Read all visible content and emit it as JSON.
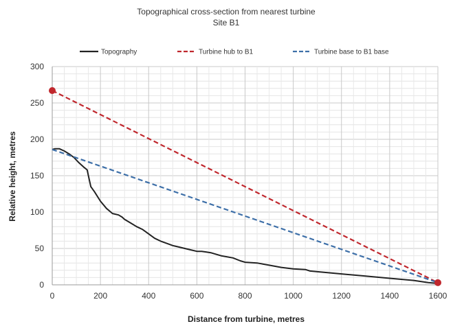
{
  "chart_data": {
    "type": "line",
    "title": "Topographical cross-section from nearest turbine",
    "subtitle": "Site B1",
    "xlabel": "Distance from turbine, metres",
    "ylabel": "Relative height, metres",
    "xlim": [
      0,
      1600
    ],
    "ylim": [
      0,
      300
    ],
    "x_ticks": [
      0,
      200,
      400,
      600,
      800,
      1000,
      1200,
      1400,
      1600
    ],
    "y_ticks": [
      0,
      50,
      100,
      150,
      200,
      250,
      300
    ],
    "grid": true,
    "legend_position": "top",
    "series": [
      {
        "name": "Topography",
        "style": "solid",
        "color": "#222222",
        "x": [
          0,
          10,
          30,
          50,
          70,
          90,
          110,
          130,
          145,
          150,
          160,
          175,
          200,
          225,
          250,
          275,
          290,
          300,
          325,
          350,
          375,
          400,
          425,
          450,
          475,
          500,
          525,
          550,
          575,
          600,
          620,
          640,
          660,
          700,
          750,
          780,
          800,
          850,
          900,
          950,
          1000,
          1050,
          1070,
          1100,
          1200,
          1300,
          1400,
          1500,
          1560,
          1600
        ],
        "y": [
          186,
          187,
          187,
          184,
          180,
          175,
          168,
          162,
          158,
          150,
          135,
          128,
          115,
          105,
          98,
          96,
          93,
          90,
          85,
          80,
          76,
          70,
          64,
          60,
          57,
          54,
          52,
          50,
          48,
          46,
          46,
          45,
          44,
          40,
          37,
          33,
          31,
          30,
          27,
          24,
          22,
          21,
          19,
          18,
          15,
          12,
          9,
          6,
          3,
          2
        ]
      },
      {
        "name": "Turbine hub to B1",
        "style": "dashed",
        "color": "#c0272d",
        "x": [
          0,
          1600
        ],
        "y": [
          267,
          3
        ]
      },
      {
        "name": "Turbine base to B1 base",
        "style": "dashed",
        "color": "#3d6fa8",
        "x": [
          0,
          1600
        ],
        "y": [
          186,
          3
        ]
      }
    ],
    "markers": [
      {
        "x": 0,
        "y": 267,
        "color": "#c0272d"
      },
      {
        "x": 1600,
        "y": 3,
        "color": "#c0272d"
      }
    ]
  }
}
